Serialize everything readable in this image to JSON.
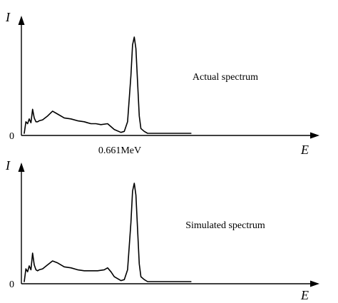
{
  "chart_data": [
    {
      "type": "line",
      "title": "Actual spectrum",
      "xlabel": "E",
      "ylabel": "I",
      "origin_label": "0",
      "x_tick_label": "0.661MeV",
      "x_tick_value": 0.661,
      "xlim": [
        0,
        1.0
      ],
      "ylim": [
        0,
        1.0
      ],
      "series": [
        {
          "x": [
            0.0,
            0.01,
            0.02,
            0.03,
            0.04,
            0.05,
            0.06,
            0.07,
            0.08,
            0.09,
            0.11,
            0.14,
            0.17,
            0.2,
            0.24,
            0.28,
            0.32,
            0.36,
            0.38,
            0.4,
            0.43,
            0.46,
            0.5,
            0.54,
            0.58,
            0.6,
            0.62,
            0.64,
            0.65,
            0.66,
            0.67,
            0.68,
            0.69,
            0.7,
            0.72,
            0.74,
            0.77,
            1.0
          ],
          "y": [
            0.0,
            0.12,
            0.1,
            0.15,
            0.11,
            0.25,
            0.16,
            0.12,
            0.12,
            0.13,
            0.14,
            0.18,
            0.23,
            0.2,
            0.16,
            0.15,
            0.13,
            0.12,
            0.11,
            0.1,
            0.1,
            0.09,
            0.1,
            0.04,
            0.01,
            0.02,
            0.12,
            0.6,
            0.92,
            1.0,
            0.88,
            0.52,
            0.18,
            0.05,
            0.02,
            0.0,
            0.0,
            0.0
          ]
        }
      ]
    },
    {
      "type": "line",
      "title": "Simulated spectrum",
      "xlabel": "E",
      "ylabel": "I",
      "origin_label": "0",
      "xlim": [
        0,
        1.0
      ],
      "ylim": [
        0,
        1.0
      ],
      "series": [
        {
          "x": [
            0.0,
            0.01,
            0.02,
            0.03,
            0.04,
            0.05,
            0.06,
            0.07,
            0.08,
            0.09,
            0.11,
            0.14,
            0.17,
            0.2,
            0.24,
            0.28,
            0.32,
            0.36,
            0.4,
            0.44,
            0.48,
            0.5,
            0.52,
            0.54,
            0.58,
            0.6,
            0.62,
            0.64,
            0.65,
            0.66,
            0.67,
            0.68,
            0.69,
            0.7,
            0.72,
            0.74,
            0.77,
            1.0
          ],
          "y": [
            0.0,
            0.13,
            0.1,
            0.16,
            0.12,
            0.29,
            0.17,
            0.12,
            0.11,
            0.12,
            0.13,
            0.17,
            0.21,
            0.19,
            0.15,
            0.14,
            0.12,
            0.11,
            0.11,
            0.11,
            0.12,
            0.14,
            0.1,
            0.05,
            0.01,
            0.02,
            0.12,
            0.6,
            0.92,
            1.0,
            0.88,
            0.52,
            0.18,
            0.05,
            0.02,
            0.0,
            0.0,
            0.0
          ]
        }
      ]
    }
  ]
}
